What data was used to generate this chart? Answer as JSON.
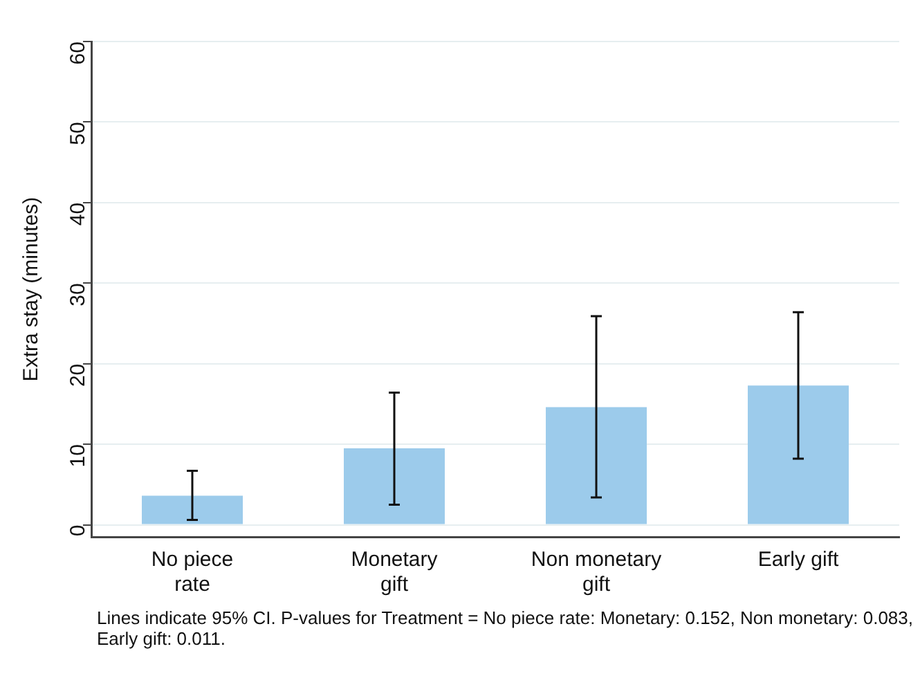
{
  "chart_data": {
    "type": "bar",
    "ylabel": "Extra stay (minutes)",
    "categories": [
      "No piece\nrate",
      "Monetary\ngift",
      "Non monetary\ngift",
      "Early gift"
    ],
    "values": [
      3.6,
      9.5,
      14.6,
      17.3
    ],
    "color": "#9ccbeb",
    "errors": [
      [
        0.6,
        6.7
      ],
      [
        2.5,
        16.4
      ],
      [
        3.4,
        25.9
      ],
      [
        8.2,
        26.4
      ]
    ],
    "ylim": [
      -1.5,
      60
    ],
    "yticks": [
      0,
      10,
      20,
      30,
      40,
      50,
      60
    ],
    "grid": "y",
    "legend": false,
    "annotations": [
      "Lines indicate 95% CI. P-values for Treatment = No piece rate: Monetary: 0.152, Non monetary: 0.083, Early gift: 0.011."
    ]
  }
}
